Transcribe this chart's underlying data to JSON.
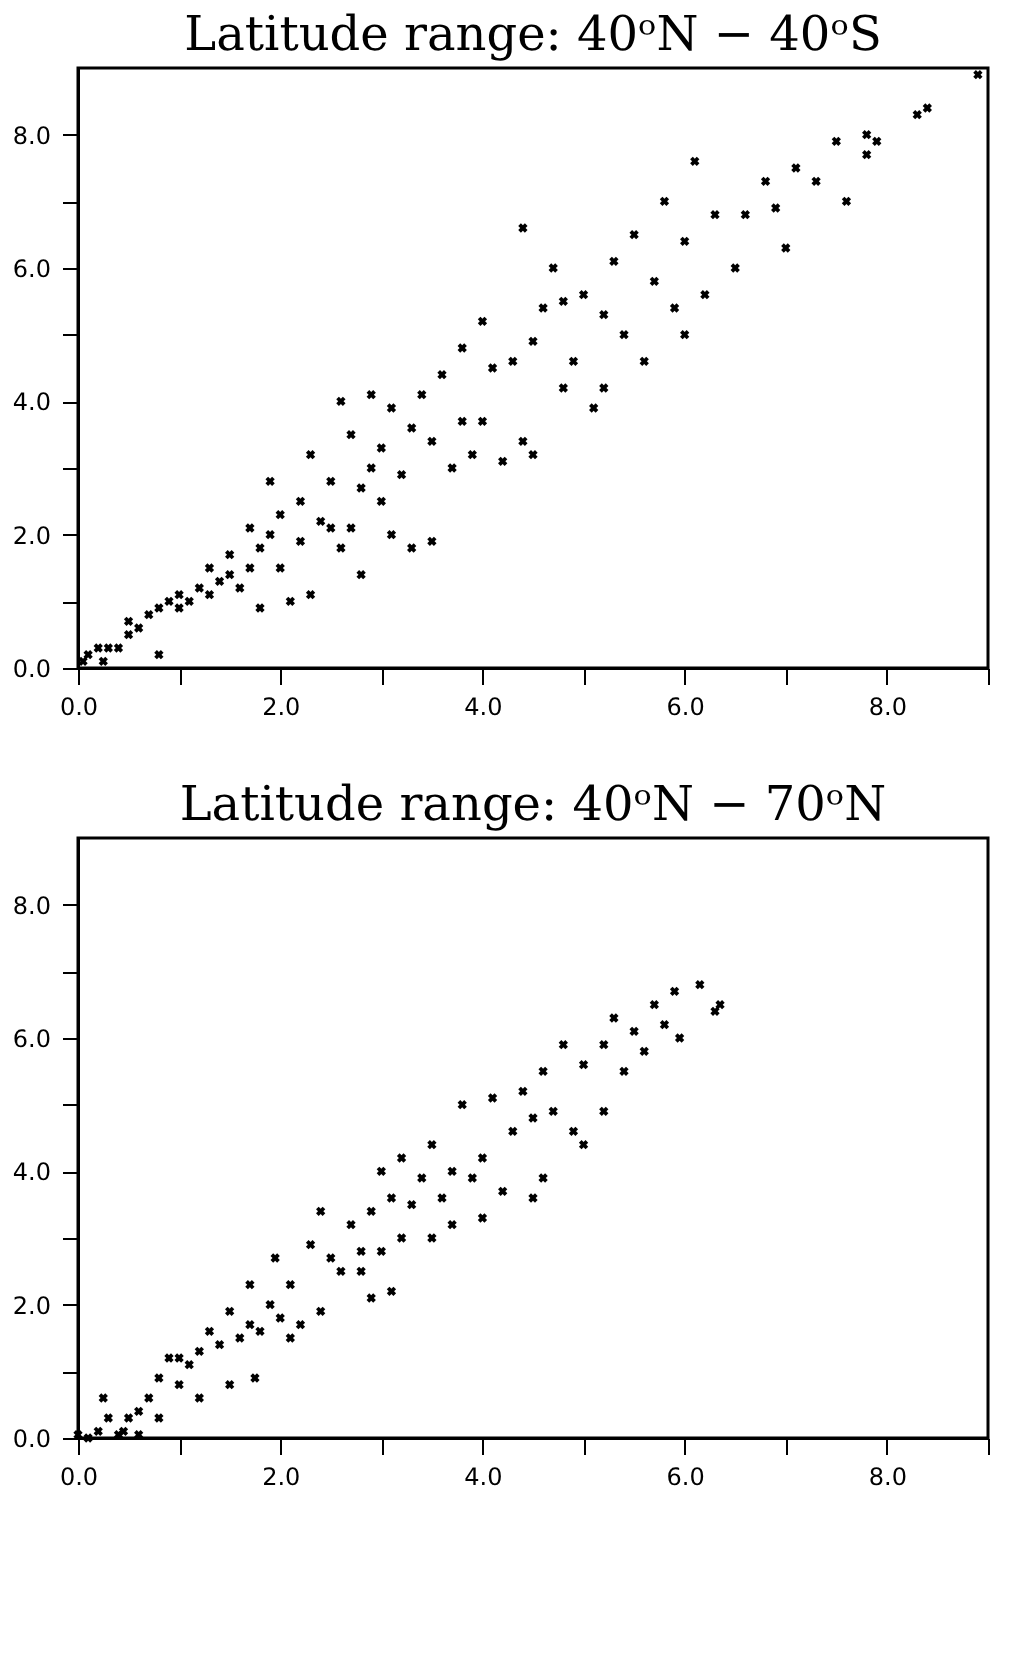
{
  "chart_data": [
    {
      "type": "scatter",
      "title": "Latitude range: 40ᵒN − 40ᵒS",
      "marker": "cross",
      "grid": false,
      "xlim": [
        0,
        9
      ],
      "ylim": [
        0,
        9
      ],
      "xticks": [
        {
          "value": 0,
          "label": "0.0"
        },
        {
          "value": 1,
          "label": null
        },
        {
          "value": 2,
          "label": "2.0"
        },
        {
          "value": 3,
          "label": null
        },
        {
          "value": 4,
          "label": "4.0"
        },
        {
          "value": 5,
          "label": null
        },
        {
          "value": 6,
          "label": "6.0"
        },
        {
          "value": 7,
          "label": null
        },
        {
          "value": 8,
          "label": "8.0"
        },
        {
          "value": 9,
          "label": null
        }
      ],
      "yticks": [
        {
          "value": 0,
          "label": "0.0"
        },
        {
          "value": 1,
          "label": null
        },
        {
          "value": 2,
          "label": "2.0"
        },
        {
          "value": 3,
          "label": null
        },
        {
          "value": 4,
          "label": "4.0"
        },
        {
          "value": 5,
          "label": null
        },
        {
          "value": 6,
          "label": "6.0"
        },
        {
          "value": 7,
          "label": null
        },
        {
          "value": 8,
          "label": "8.0"
        }
      ],
      "series": [
        {
          "color": "#000000",
          "x": [
            0.05,
            0.1,
            0.2,
            0.3,
            0.25,
            0.4,
            0.5,
            0.5,
            0.6,
            0.7,
            0.8,
            0.8,
            0.9,
            1.0,
            1.0,
            1.1,
            1.2,
            1.3,
            1.3,
            1.4,
            1.5,
            1.5,
            1.6,
            1.7,
            1.7,
            1.8,
            1.8,
            1.9,
            1.9,
            2.0,
            2.0,
            2.1,
            2.2,
            2.2,
            2.3,
            2.3,
            2.4,
            2.5,
            2.5,
            2.6,
            2.6,
            2.7,
            2.7,
            2.8,
            2.8,
            2.9,
            2.9,
            3.0,
            3.0,
            3.1,
            3.1,
            3.2,
            3.3,
            3.3,
            3.4,
            3.5,
            3.5,
            3.6,
            3.7,
            3.8,
            3.8,
            3.9,
            4.0,
            4.0,
            4.1,
            4.2,
            4.3,
            4.4,
            4.4,
            4.5,
            4.5,
            4.6,
            4.7,
            4.8,
            4.8,
            4.9,
            5.0,
            5.1,
            5.2,
            5.2,
            5.3,
            5.4,
            5.5,
            5.6,
            5.7,
            5.8,
            5.9,
            6.0,
            6.0,
            6.1,
            6.2,
            6.3,
            6.5,
            6.6,
            6.8,
            6.9,
            7.0,
            7.1,
            7.3,
            7.5,
            7.6,
            7.8,
            7.8,
            7.9,
            8.3,
            8.4,
            8.9
          ],
          "values": [
            0.1,
            0.2,
            0.3,
            0.3,
            0.1,
            0.3,
            0.5,
            0.7,
            0.6,
            0.8,
            0.9,
            0.2,
            1.0,
            0.9,
            1.1,
            1.0,
            1.2,
            1.1,
            1.5,
            1.3,
            1.4,
            1.7,
            1.2,
            1.5,
            2.1,
            0.9,
            1.8,
            2.0,
            2.8,
            1.5,
            2.3,
            1.0,
            2.5,
            1.9,
            3.2,
            1.1,
            2.2,
            2.1,
            2.8,
            1.8,
            4.0,
            2.1,
            3.5,
            2.7,
            1.4,
            3.0,
            4.1,
            3.3,
            2.5,
            2.0,
            3.9,
            2.9,
            1.8,
            3.6,
            4.1,
            3.4,
            1.9,
            4.4,
            3.0,
            3.7,
            4.8,
            3.2,
            3.7,
            5.2,
            4.5,
            3.1,
            4.6,
            3.4,
            6.6,
            4.9,
            3.2,
            5.4,
            6.0,
            4.2,
            5.5,
            4.6,
            5.6,
            3.9,
            5.3,
            4.2,
            6.1,
            5.0,
            6.5,
            4.6,
            5.8,
            7.0,
            5.4,
            6.4,
            5.0,
            7.6,
            5.6,
            6.8,
            6.0,
            6.8,
            7.3,
            6.9,
            6.3,
            7.5,
            7.3,
            7.9,
            7.0,
            8.0,
            7.7,
            7.9,
            8.3,
            8.4,
            8.9
          ]
        }
      ]
    },
    {
      "type": "scatter",
      "title": "Latitude range: 40ᵒN − 70ᵒN",
      "marker": "cross",
      "grid": false,
      "xlim": [
        0,
        9
      ],
      "ylim": [
        0,
        9
      ],
      "xticks": [
        {
          "value": 0,
          "label": "0.0"
        },
        {
          "value": 1,
          "label": null
        },
        {
          "value": 2,
          "label": "2.0"
        },
        {
          "value": 3,
          "label": null
        },
        {
          "value": 4,
          "label": "4.0"
        },
        {
          "value": 5,
          "label": null
        },
        {
          "value": 6,
          "label": "6.0"
        },
        {
          "value": 7,
          "label": null
        },
        {
          "value": 8,
          "label": "8.0"
        },
        {
          "value": 9,
          "label": null
        }
      ],
      "yticks": [
        {
          "value": 0,
          "label": "0.0"
        },
        {
          "value": 1,
          "label": null
        },
        {
          "value": 2,
          "label": "2.0"
        },
        {
          "value": 3,
          "label": null
        },
        {
          "value": 4,
          "label": "4.0"
        },
        {
          "value": 5,
          "label": null
        },
        {
          "value": 6,
          "label": "6.0"
        },
        {
          "value": 7,
          "label": null
        },
        {
          "value": 8,
          "label": "8.0"
        }
      ],
      "series": [
        {
          "color": "#000000",
          "x": [
            0.0,
            0.1,
            0.2,
            0.25,
            0.3,
            0.4,
            0.45,
            0.5,
            0.6,
            0.6,
            0.7,
            0.8,
            0.8,
            0.9,
            1.0,
            1.0,
            1.1,
            1.2,
            1.2,
            1.3,
            1.4,
            1.5,
            1.5,
            1.6,
            1.7,
            1.7,
            1.75,
            1.8,
            1.9,
            1.95,
            2.0,
            2.1,
            2.1,
            2.2,
            2.3,
            2.4,
            2.4,
            2.5,
            2.6,
            2.7,
            2.8,
            2.8,
            2.9,
            2.9,
            3.0,
            3.0,
            3.1,
            3.1,
            3.2,
            3.2,
            3.3,
            3.4,
            3.5,
            3.5,
            3.6,
            3.7,
            3.7,
            3.8,
            3.9,
            4.0,
            4.0,
            4.1,
            4.2,
            4.3,
            4.4,
            4.5,
            4.5,
            4.6,
            4.6,
            4.7,
            4.8,
            4.9,
            5.0,
            5.0,
            5.2,
            5.2,
            5.3,
            5.4,
            5.5,
            5.6,
            5.7,
            5.8,
            5.9,
            5.95,
            6.15,
            6.3,
            6.35
          ],
          "values": [
            0.05,
            0.0,
            0.1,
            0.6,
            0.3,
            0.05,
            0.1,
            0.3,
            0.4,
            0.05,
            0.6,
            0.3,
            0.9,
            1.2,
            0.8,
            1.2,
            1.1,
            0.6,
            1.3,
            1.6,
            1.4,
            0.8,
            1.9,
            1.5,
            2.3,
            1.7,
            0.9,
            1.6,
            2.0,
            2.7,
            1.8,
            2.3,
            1.5,
            1.7,
            2.9,
            3.4,
            1.9,
            2.7,
            2.5,
            3.2,
            2.8,
            2.5,
            2.1,
            3.4,
            4.0,
            2.8,
            2.2,
            3.6,
            4.2,
            3.0,
            3.5,
            3.9,
            3.0,
            4.4,
            3.6,
            4.0,
            3.2,
            5.0,
            3.9,
            4.2,
            3.3,
            5.1,
            3.7,
            4.6,
            5.2,
            3.6,
            4.8,
            5.5,
            3.9,
            4.9,
            5.9,
            4.6,
            5.6,
            4.4,
            5.9,
            4.9,
            6.3,
            5.5,
            6.1,
            5.8,
            6.5,
            6.2,
            6.7,
            6.0,
            6.8,
            6.4,
            6.5
          ]
        }
      ]
    }
  ]
}
